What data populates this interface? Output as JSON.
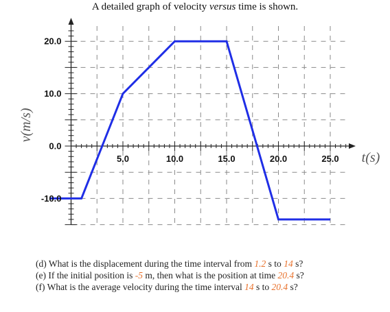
{
  "caption": {
    "pre": "A detailed graph of velocity ",
    "emph": "versus",
    "post": " time is shown."
  },
  "chart_data": {
    "type": "line",
    "title": "A detailed graph of velocity versus time is shown.",
    "xlabel": "t(s)",
    "ylabel": "v(m/s)",
    "xlim": [
      -2,
      28
    ],
    "ylim": [
      -15,
      23
    ],
    "x_ticks": [
      5,
      10,
      15,
      20,
      25
    ],
    "x_tick_labels": [
      "5.0",
      "10.0",
      "15.0",
      "20.0",
      "25.0"
    ],
    "y_ticks": [
      20,
      10,
      0,
      -10
    ],
    "y_tick_labels": [
      "20.0",
      "10.0",
      "0.0",
      "-10.0"
    ],
    "grid": "dashed",
    "series": [
      {
        "color": "#1f2ee6",
        "x": [
          -2,
          1,
          3,
          5,
          10,
          15,
          20,
          25
        ],
        "y": [
          -10,
          -10,
          0,
          10,
          20,
          20,
          -14,
          -14
        ]
      }
    ]
  },
  "questions": [
    {
      "label": "(d)",
      "parts": [
        {
          "t": "What is the displacement during the time interval from "
        },
        {
          "t": "1.2",
          "hl": true
        },
        {
          "t": " s to "
        },
        {
          "t": "14",
          "hl": true
        },
        {
          "t": " s?"
        }
      ]
    },
    {
      "label": "(e)",
      "parts": [
        {
          "t": "If the initial position is "
        },
        {
          "t": "-5",
          "hl": true
        },
        {
          "t": " m, then what is the position at time "
        },
        {
          "t": "20.4",
          "hl": true
        },
        {
          "t": " s?"
        }
      ]
    },
    {
      "label": "(f)",
      "parts": [
        {
          "t": "What is the average velocity during the time interval "
        },
        {
          "t": "14",
          "hl": true
        },
        {
          "t": " s to "
        },
        {
          "t": "20.4",
          "hl": true
        },
        {
          "t": " s?"
        }
      ]
    }
  ]
}
